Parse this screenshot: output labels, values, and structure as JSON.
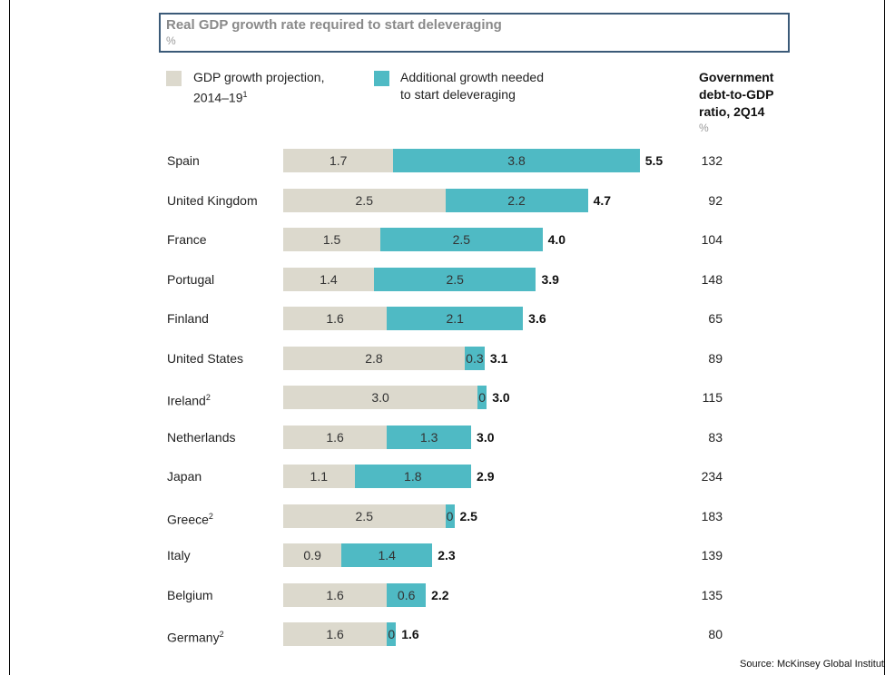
{
  "title": "Real GDP growth rate required to start deleveraging",
  "title_unit": "%",
  "legend": {
    "base_line1": "GDP growth projection,",
    "base_line2": "2014–19",
    "base_sup": "1",
    "add_line1": "Additional growth needed",
    "add_line2": "to start deleveraging",
    "base_color": "#dcd9cd",
    "add_color": "#4fbac4"
  },
  "debt_header": {
    "line1": "Government",
    "line2": "debt-to-GDP",
    "line3": "ratio, 2Q14",
    "unit": "%"
  },
  "source": "Source: McKinsey Global Institut",
  "chart_data": {
    "type": "bar",
    "orientation": "horizontal",
    "stacked": true,
    "title": "Real GDP growth rate required to start deleveraging",
    "unit": "%",
    "categories": [
      "Spain",
      "United Kingdom",
      "France",
      "Portugal",
      "Finland",
      "United States",
      "Ireland",
      "Netherlands",
      "Japan",
      "Greece",
      "Italy",
      "Belgium",
      "Germany"
    ],
    "category_sup": [
      "",
      "",
      "",
      "",
      "",
      "",
      "2",
      "",
      "",
      "2",
      "",
      "",
      "2"
    ],
    "series": [
      {
        "name": "GDP growth projection, 2014–19",
        "values": [
          1.7,
          2.5,
          1.5,
          1.4,
          1.6,
          2.8,
          3.0,
          1.6,
          1.1,
          2.5,
          0.9,
          1.6,
          1.6
        ],
        "color": "#dcd9cd"
      },
      {
        "name": "Additional growth needed to start deleveraging",
        "values": [
          3.8,
          2.2,
          2.5,
          2.5,
          2.1,
          0.3,
          0,
          1.3,
          1.8,
          0,
          1.4,
          0.6,
          0
        ],
        "color": "#4fbac4"
      }
    ],
    "base_labels": [
      "1.7",
      "2.5",
      "1.5",
      "1.4",
      "1.6",
      "2.8",
      "3.0",
      "1.6",
      "1.1",
      "2.5",
      "0.9",
      "1.6",
      "1.6"
    ],
    "add_labels": [
      "3.8",
      "2.2",
      "2.5",
      "2.5",
      "2.1",
      "0.3",
      "0",
      "1.3",
      "1.8",
      "0",
      "1.4",
      "0.6",
      "0"
    ],
    "totals": [
      "5.5",
      "4.7",
      "4.0",
      "3.9",
      "3.6",
      "3.1",
      "3.0",
      "3.0",
      "2.9",
      "2.5",
      "2.3",
      "2.2",
      "1.6"
    ],
    "debt_to_gdp": [
      132,
      92,
      104,
      148,
      65,
      89,
      115,
      83,
      234,
      183,
      139,
      135,
      80
    ],
    "grid": false,
    "legend_position": "top"
  }
}
